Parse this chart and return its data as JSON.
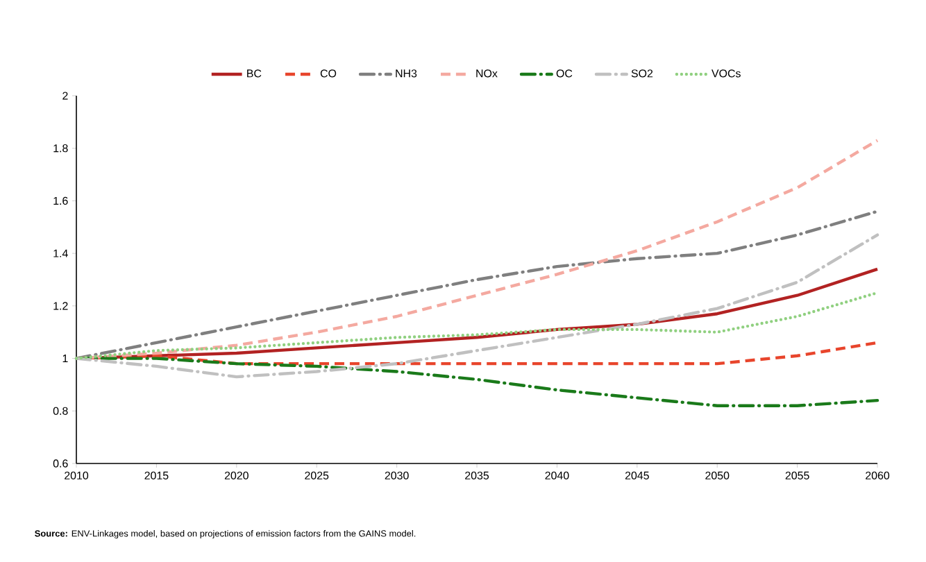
{
  "chart_data": {
    "type": "line",
    "x": [
      2010,
      2015,
      2020,
      2025,
      2030,
      2035,
      2040,
      2045,
      2050,
      2055,
      2060
    ],
    "xlim": [
      2010,
      2060
    ],
    "xticks": [
      2010,
      2015,
      2020,
      2025,
      2030,
      2035,
      2040,
      2045,
      2050,
      2055,
      2060
    ],
    "ylim": [
      0.6,
      2
    ],
    "yticks": [
      0.6,
      0.8,
      1,
      1.2,
      1.4,
      1.6,
      1.8,
      2
    ],
    "legend": "top",
    "grid": false,
    "series": [
      {
        "name": "BC",
        "color": "#b22222",
        "line_style": "solid",
        "values": [
          1,
          1.01,
          1.02,
          1.04,
          1.06,
          1.08,
          1.11,
          1.13,
          1.17,
          1.24,
          1.34
        ]
      },
      {
        "name": "CO",
        "color": "#e8452c",
        "line_style": "dashed",
        "values": [
          1,
          1.01,
          0.98,
          0.98,
          0.98,
          0.98,
          0.98,
          0.98,
          0.98,
          1.01,
          1.06
        ]
      },
      {
        "name": "NH3",
        "color": "#7f7f7f",
        "line_style": "dashdot",
        "values": [
          1,
          1.06,
          1.12,
          1.18,
          1.24,
          1.3,
          1.35,
          1.38,
          1.4,
          1.47,
          1.56
        ]
      },
      {
        "name": "NOx",
        "color": "#f4a9a0",
        "line_style": "dashed",
        "values": [
          1,
          1.02,
          1.05,
          1.1,
          1.16,
          1.24,
          1.32,
          1.41,
          1.52,
          1.65,
          1.83
        ]
      },
      {
        "name": "OC",
        "color": "#1a7a1a",
        "line_style": "dashdot",
        "values": [
          1,
          1.0,
          0.98,
          0.97,
          0.95,
          0.92,
          0.88,
          0.85,
          0.82,
          0.82,
          0.84
        ]
      },
      {
        "name": "SO2",
        "color": "#c0c0c0",
        "line_style": "dashdot",
        "values": [
          1,
          0.97,
          0.93,
          0.95,
          0.98,
          1.03,
          1.08,
          1.13,
          1.19,
          1.29,
          1.47
        ]
      },
      {
        "name": "VOCs",
        "color": "#90d080",
        "line_style": "dotted",
        "values": [
          1,
          1.03,
          1.04,
          1.06,
          1.08,
          1.09,
          1.11,
          1.11,
          1.1,
          1.16,
          1.25
        ]
      }
    ],
    "annotations": [
      "**Source:** ENV-Linkages model, based on projections of emission factors from the GAINS model."
    ]
  }
}
